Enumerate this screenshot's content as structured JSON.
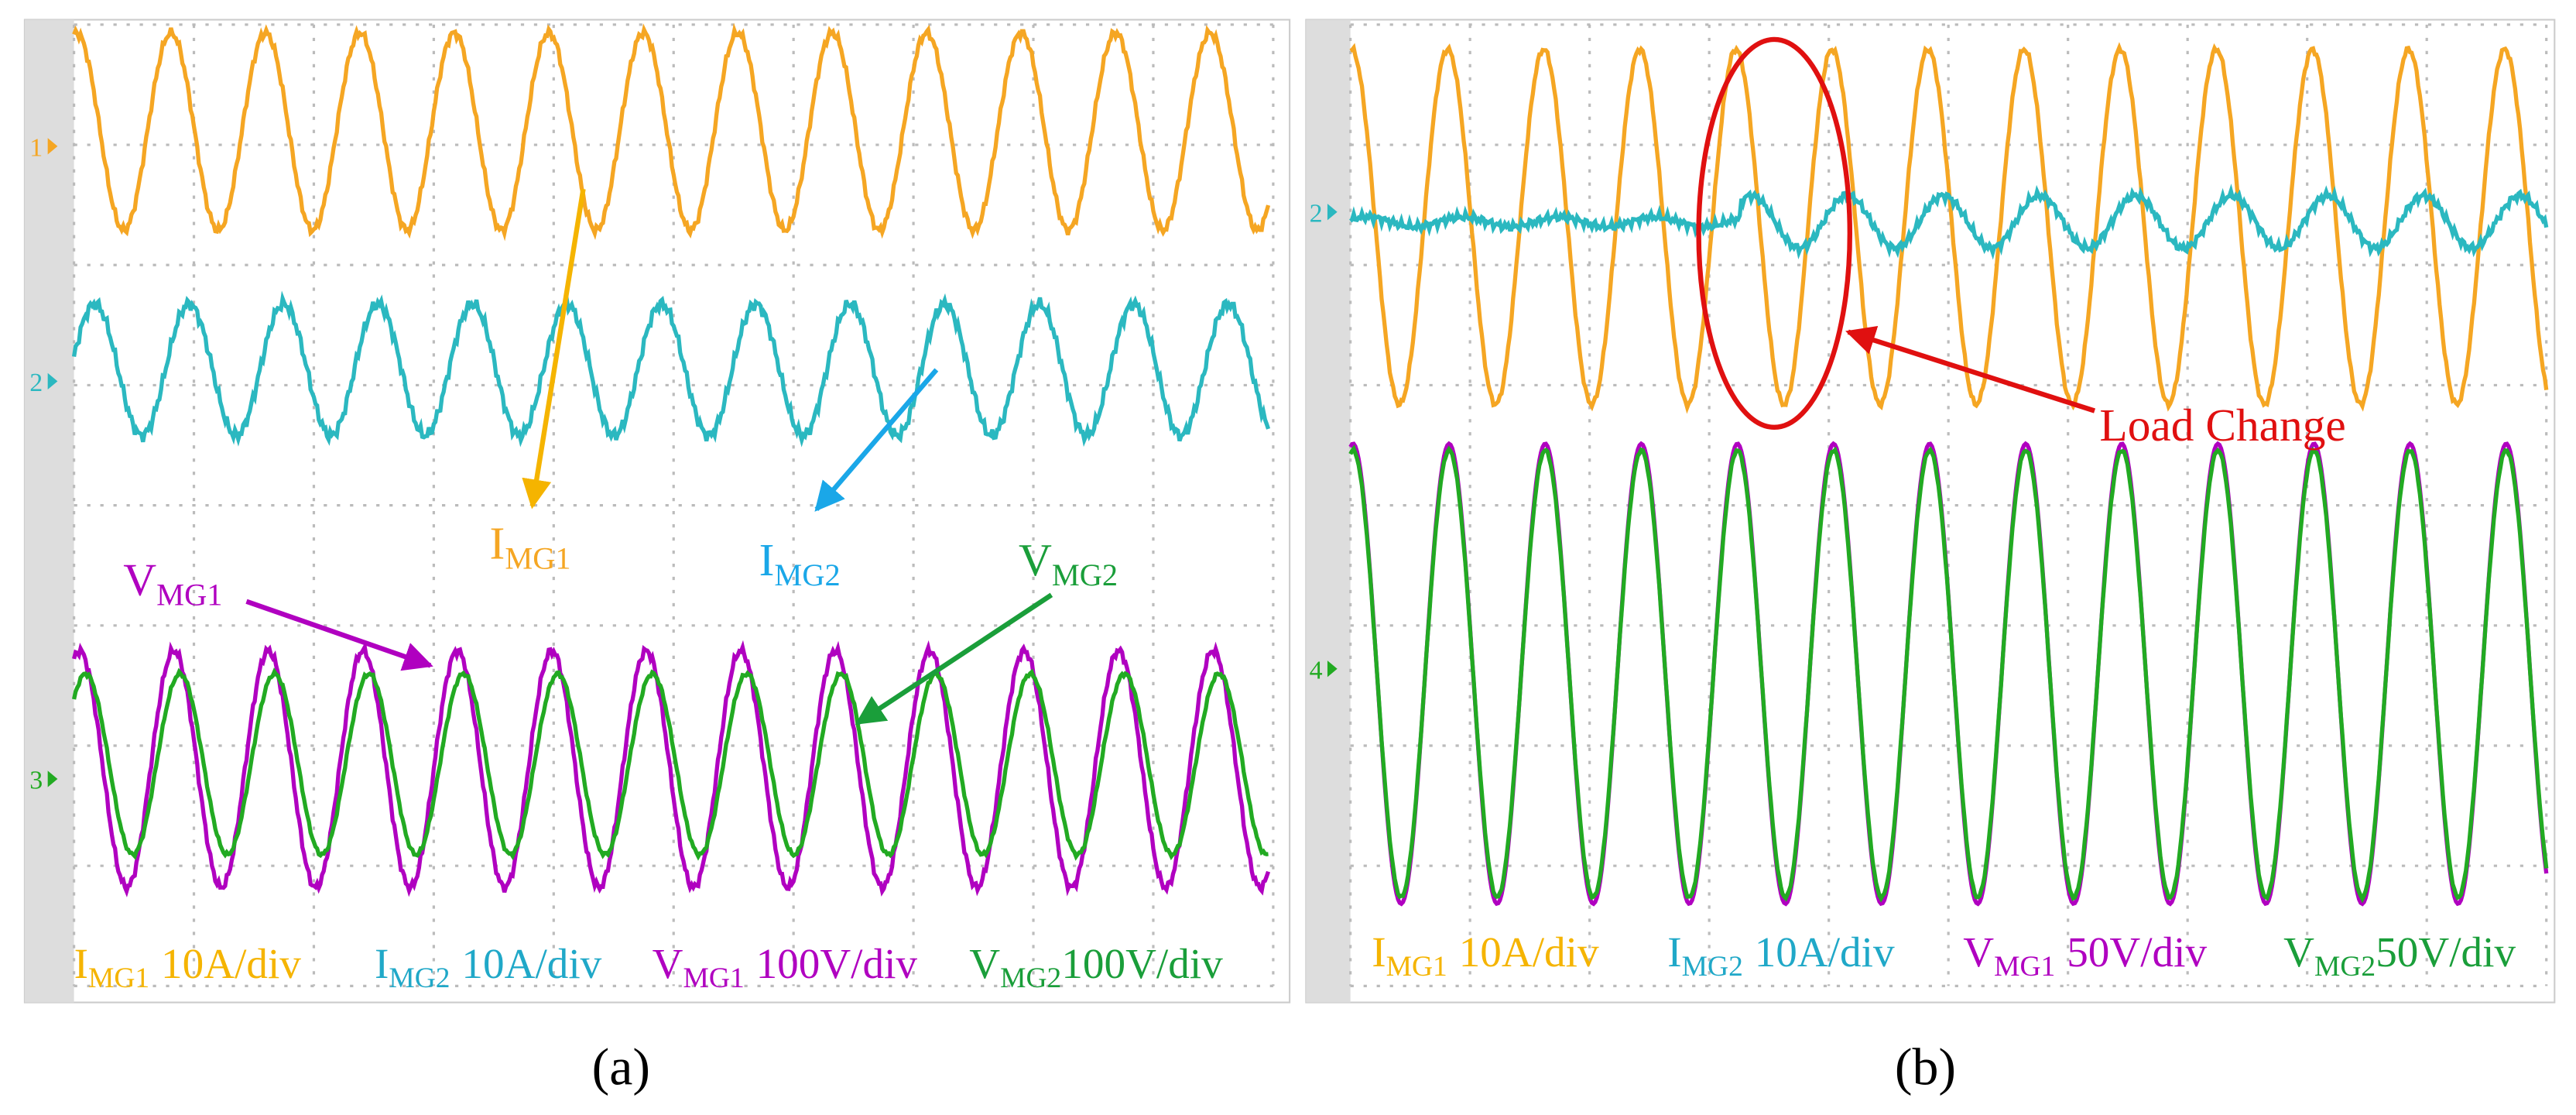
{
  "panels": [
    {
      "caption": "(a)",
      "channel_markers": [
        "1",
        "2",
        "3"
      ],
      "labels": [
        {
          "main": "I",
          "sub": "MG1"
        },
        {
          "main": "I",
          "sub": "MG2"
        },
        {
          "main": "V",
          "sub": "MG1"
        },
        {
          "main": "V",
          "sub": "MG2"
        }
      ],
      "scales": [
        {
          "main": "I",
          "sub": "MG1",
          "text": "10A/div"
        },
        {
          "main": "I",
          "sub": "MG2",
          "text": "10A/div"
        },
        {
          "main": "V",
          "sub": "MG1",
          "text": "100V/div"
        },
        {
          "main": "V",
          "sub": "MG2",
          "text": "100V/div"
        }
      ]
    },
    {
      "caption": "(b)",
      "channel_markers": [
        "2",
        "4"
      ],
      "annotation": "Load Change",
      "scales": [
        {
          "main": "I",
          "sub": "MG1",
          "text": "10A/div"
        },
        {
          "main": "I",
          "sub": "MG2",
          "text": "10A/div"
        },
        {
          "main": "V",
          "sub": "MG1",
          "text": "50V/div"
        },
        {
          "main": "V",
          "sub": "MG2",
          "text": "50V/div"
        }
      ]
    }
  ]
}
